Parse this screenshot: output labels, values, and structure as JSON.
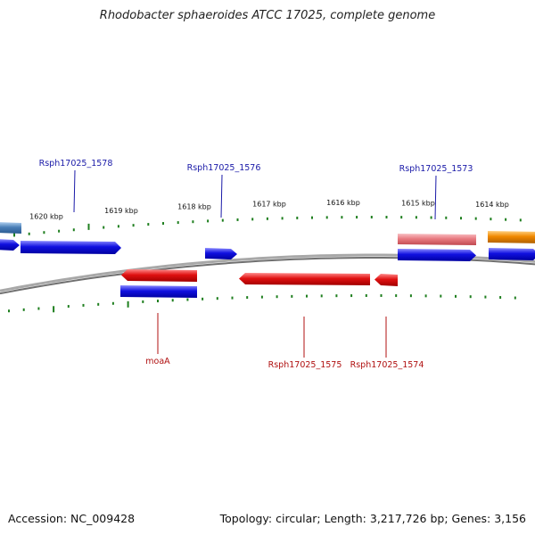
{
  "title": "Rhodobacter sphaeroides ATCC 17025, complete genome",
  "footer": {
    "accession": "Accession: NC_009428",
    "summary": "Topology: circular; Length: 3,217,726 bp; Genes: 3,156"
  },
  "colors": {
    "forward_gene": "#1010e0",
    "reverse_gene": "#e01010",
    "pink_gene": "#e87a80",
    "orange_gene": "#f08800",
    "steelblue_gene": "#4a7fb8",
    "backbone": "#8a8a8a",
    "tick": "#1f7f1f",
    "label_top": "#1a1aa8",
    "label_bottom": "#b01010"
  },
  "scale_labels": [
    "1620 kbp",
    "1619 kbp",
    "1618 kbp",
    "1617 kbp",
    "1616 kbp",
    "1615 kbp",
    "1614 kbp"
  ],
  "gene_labels": {
    "top": [
      "Rsph17025_1578",
      "Rsph17025_1576",
      "Rsph17025_1573"
    ],
    "bottom": [
      "moaA",
      "Rsph17025_1575",
      "Rsph17025_1574"
    ]
  }
}
